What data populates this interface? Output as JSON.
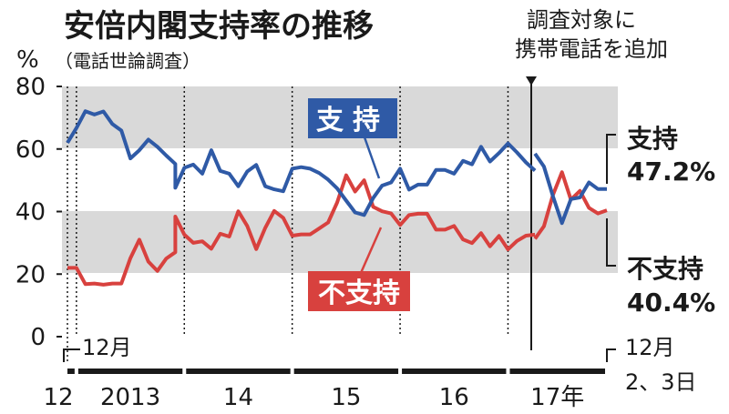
{
  "title": "安倍内閣支持率の推移",
  "subtitle": "（電話世論調査）",
  "unit": "%",
  "annotation": [
    "調査対象に",
    "携帯電話を追加"
  ],
  "start_note": "12月",
  "end_note": [
    "12月",
    "2、3日"
  ],
  "colors": {
    "support": "#2f5aa6",
    "disapproval": "#d8413e",
    "band": "#d9d9d9",
    "axis": "#1a1a1a"
  },
  "chart_data": {
    "type": "line",
    "ylim": [
      0,
      80
    ],
    "y_ticks": [
      0,
      20,
      40,
      60,
      80
    ],
    "x_ticks": [
      "12",
      "2013",
      "14",
      "15",
      "16",
      "17年"
    ],
    "x_range": [
      "2012-12",
      "2017-12"
    ],
    "grid": "gray bands 20–40 and 60–80; dotted vertical lines at year starts",
    "series": [
      {
        "name": "支持",
        "end_label": "支持",
        "end_value_label": "47.2%",
        "x": [
          "2012-12",
          "2013-01",
          "2013-02",
          "2013-03",
          "2013-04",
          "2013-05",
          "2013-06",
          "2013-07",
          "2013-08",
          "2013-09",
          "2013-10",
          "2013-11",
          "2013-12",
          "2013-12",
          "2014-01",
          "2014-02",
          "2014-03",
          "2014-04",
          "2014-05",
          "2014-06",
          "2014-07",
          "2014-08",
          "2014-09",
          "2014-10",
          "2014-11",
          "2014-12",
          "2015-01",
          "2015-02",
          "2015-03",
          "2015-04",
          "2015-05",
          "2015-06",
          "2015-07",
          "2015-08",
          "2015-09",
          "2015-10",
          "2015-11",
          "2015-12",
          "2016-01",
          "2016-02",
          "2016-03",
          "2016-04",
          "2016-05",
          "2016-06",
          "2016-07",
          "2016-08",
          "2016-09",
          "2016-10",
          "2016-11",
          "2016-12",
          "2017-01",
          "2017-02",
          "2017-03",
          "2017-04",
          "2017-04",
          "2017-05",
          "2017-06",
          "2017-07",
          "2017-08",
          "2017-09",
          "2017-10",
          "2017-11",
          "2017-12"
        ],
        "values": [
          62.0,
          66.7,
          72.1,
          71.0,
          72.0,
          68.0,
          65.9,
          57.0,
          59.6,
          63.0,
          60.7,
          57.9,
          55.2,
          47.6,
          54.0,
          55.0,
          52.1,
          59.6,
          53.0,
          52.1,
          48.1,
          52.8,
          54.9,
          48.1,
          47.1,
          46.5,
          53.7,
          54.2,
          53.7,
          52.3,
          50.2,
          47.4,
          43.5,
          39.7,
          38.9,
          44.3,
          48.3,
          49.3,
          53.7,
          47.0,
          48.6,
          48.6,
          53.3,
          53.3,
          52.1,
          56.2,
          55.1,
          60.7,
          56.0,
          58.7,
          61.8,
          58.9,
          55.7,
          53.1,
          58.5,
          54.4,
          44.9,
          36.3,
          44.0,
          44.5,
          49.3,
          47.2,
          47.2
        ]
      },
      {
        "name": "不支持",
        "end_label": "不支持",
        "end_value_label": "40.4%",
        "x": [
          "2012-12",
          "2013-01",
          "2013-02",
          "2013-03",
          "2013-04",
          "2013-05",
          "2013-06",
          "2013-07",
          "2013-08",
          "2013-09",
          "2013-10",
          "2013-11",
          "2013-12",
          "2013-12",
          "2014-01",
          "2014-02",
          "2014-03",
          "2014-04",
          "2014-05",
          "2014-06",
          "2014-07",
          "2014-08",
          "2014-09",
          "2014-10",
          "2014-11",
          "2014-12",
          "2015-01",
          "2015-02",
          "2015-03",
          "2015-04",
          "2015-05",
          "2015-06",
          "2015-07",
          "2015-08",
          "2015-09",
          "2015-10",
          "2015-11",
          "2015-12",
          "2016-01",
          "2016-02",
          "2016-03",
          "2016-04",
          "2016-05",
          "2016-06",
          "2016-07",
          "2016-08",
          "2016-09",
          "2016-10",
          "2016-11",
          "2016-12",
          "2017-01",
          "2017-02",
          "2017-03",
          "2017-04",
          "2017-04",
          "2017-05",
          "2017-06",
          "2017-07",
          "2017-08",
          "2017-09",
          "2017-10",
          "2017-11",
          "2017-12"
        ],
        "values": [
          22.0,
          22.0,
          16.8,
          17.0,
          16.6,
          17.0,
          17.0,
          25.1,
          31.0,
          24.0,
          21.0,
          25.0,
          27.0,
          38.4,
          32.6,
          30.0,
          30.5,
          28.1,
          32.9,
          32.0,
          40.1,
          35.4,
          28.0,
          34.8,
          40.2,
          38.0,
          32.3,
          32.7,
          32.7,
          34.6,
          36.5,
          42.9,
          51.6,
          46.4,
          50.0,
          41.5,
          40.1,
          39.4,
          35.7,
          38.9,
          39.3,
          39.3,
          34.2,
          34.2,
          35.4,
          31.1,
          29.9,
          33.1,
          28.9,
          32.2,
          27.9,
          30.6,
          32.3,
          32.6,
          31.3,
          35.3,
          45.3,
          52.6,
          43.8,
          46.6,
          41.2,
          39.4,
          40.4
        ]
      }
    ]
  }
}
